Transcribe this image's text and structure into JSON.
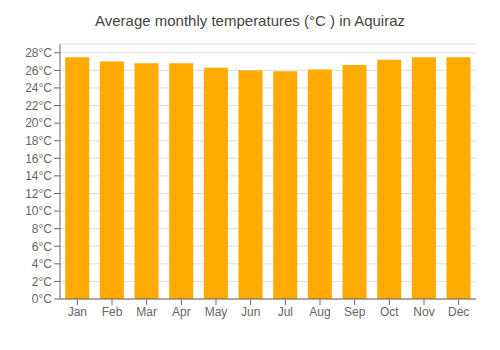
{
  "chart_data": {
    "type": "bar",
    "title": "Average monthly temperatures (°C ) in Aquiraz",
    "categories": [
      "Jan",
      "Feb",
      "Mar",
      "Apr",
      "May",
      "Jun",
      "Jul",
      "Aug",
      "Sep",
      "Oct",
      "Nov",
      "Dec"
    ],
    "values": [
      27.5,
      27.0,
      26.8,
      26.8,
      26.3,
      26.0,
      25.9,
      26.1,
      26.6,
      27.2,
      27.5,
      27.5
    ],
    "color": "#FFAA00",
    "ylim": [
      0,
      29
    ],
    "yticks": [
      {
        "value": 0,
        "label": "0°C"
      },
      {
        "value": 2,
        "label": "2°C"
      },
      {
        "value": 4,
        "label": "4°C"
      },
      {
        "value": 6,
        "label": "6°C"
      },
      {
        "value": 8,
        "label": "8°C"
      },
      {
        "value": 10,
        "label": "10°C"
      },
      {
        "value": 12,
        "label": "12°C"
      },
      {
        "value": 14,
        "label": "14°C"
      },
      {
        "value": 16,
        "label": "16°C"
      },
      {
        "value": 18,
        "label": "18°C"
      },
      {
        "value": 20,
        "label": "20°C"
      },
      {
        "value": 22,
        "label": "22°C"
      },
      {
        "value": 24,
        "label": "24°C"
      },
      {
        "value": 26,
        "label": "26°C"
      },
      {
        "value": 28,
        "label": "28°C"
      }
    ],
    "grid": true
  }
}
